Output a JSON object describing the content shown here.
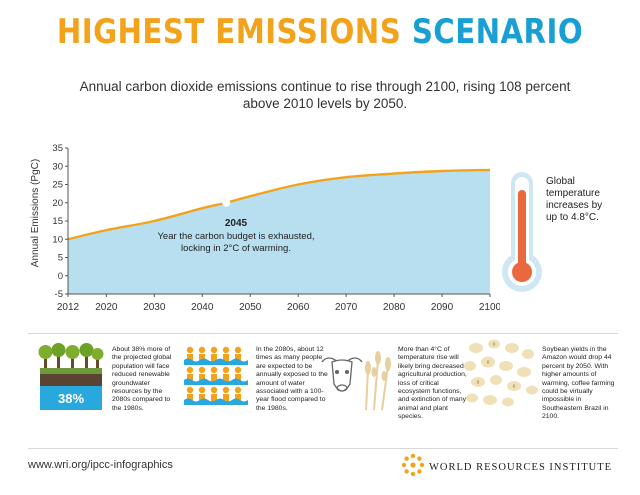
{
  "header": {
    "title_part1": "HIGHEST EMISSIONS",
    "title_part2": "SCENARIO",
    "subtitle": "Annual carbon dioxide emissions continue to rise through 2100, rising 108 percent above 2010 levels by 2050."
  },
  "colors": {
    "orange": "#f2a31b",
    "blue": "#1a9fd5",
    "area_fill": "#b8dfef",
    "thermo_red": "#e9683e",
    "thermo_outer": "#cfe6f3"
  },
  "chart_data": {
    "type": "area",
    "xlabel": "",
    "ylabel": "Annual Emissions (PgC)",
    "xlim": [
      2012,
      2100
    ],
    "ylim": [
      -5,
      35
    ],
    "x_ticks": [
      "2012",
      "2020",
      "2030",
      "2040",
      "2050",
      "2060",
      "2070",
      "2080",
      "2090",
      "2100"
    ],
    "y_ticks": [
      "35",
      "30",
      "25",
      "20",
      "15",
      "10",
      "5",
      "0",
      "-5"
    ],
    "x_tick_values": [
      2012,
      2020,
      2030,
      2040,
      2050,
      2060,
      2070,
      2080,
      2090,
      2100
    ],
    "y_tick_values": [
      35,
      30,
      25,
      20,
      15,
      10,
      5,
      0,
      -5
    ],
    "series": [
      {
        "x": [
          2012,
          2020,
          2030,
          2040,
          2045,
          2050,
          2060,
          2070,
          2080,
          2090,
          2100
        ],
        "y": [
          10,
          12.5,
          15,
          18.5,
          20,
          21.8,
          25,
          27,
          28,
          28.7,
          29
        ]
      }
    ],
    "annotation": {
      "x": 2045,
      "y": 20,
      "label": "2045",
      "text_line1": "Year the carbon budget is exhausted,",
      "text_line2": "locking in 2°C of warming."
    },
    "grid": false
  },
  "thermometer": {
    "text": "Global temperature increases by up to 4.8°C."
  },
  "facts": [
    {
      "icon": "trees-water-icon",
      "badge": "38%",
      "text": "About 38% more of the projected global population will face reduced renewable groundwater resources by the 2080s compared to the 1980s."
    },
    {
      "icon": "flood-people-icon",
      "text": "In the 2080s, about 12 times as many people are expected to be annually exposed to the amount of water associated with a 100-year flood compared to the 1980s."
    },
    {
      "icon": "cow-wheat-icon",
      "text": "More than 4°C of temperature rise will likely bring decreased agricultural production, loss of critical ecosystem functions, and extinction of many animal and plant species."
    },
    {
      "icon": "beans-icon",
      "text": "Soybean yields in the Amazon would drop 44 percent by 2050. With higher amounts of warming, coffee farming could be virtually impossible in Southeastern Brazil in 2100."
    }
  ],
  "footer": {
    "url": "www.wri.org/ipcc-infographics",
    "org": "WORLD RESOURCES INSTITUTE"
  }
}
